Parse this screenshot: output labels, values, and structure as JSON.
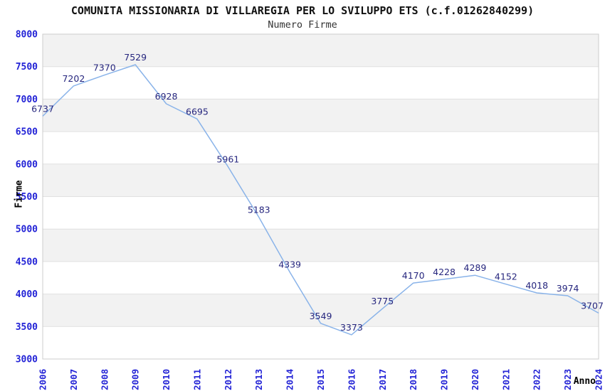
{
  "header": {
    "title": "COMUNITA MISSIONARIA DI VILLAREGIA PER LO SVILUPPO ETS (c.f.01262840299)",
    "subtitle": "Numero Firme"
  },
  "chart_data": {
    "type": "line",
    "title": "COMUNITA MISSIONARIA DI VILLAREGIA PER LO SVILUPPO ETS (c.f.01262840299)",
    "subtitle": "Numero Firme",
    "xlabel": "Anno",
    "ylabel": "Firme",
    "categories": [
      "2006",
      "2007",
      "2008",
      "2009",
      "2010",
      "2011",
      "2012",
      "2013",
      "2014",
      "2015",
      "2016",
      "2017",
      "2018",
      "2019",
      "2020",
      "2021",
      "2022",
      "2023",
      "2024"
    ],
    "values": [
      6737,
      7202,
      7370,
      7529,
      6928,
      6695,
      5961,
      5183,
      4339,
      3549,
      3373,
      3775,
      4170,
      4228,
      4289,
      4152,
      4018,
      3974,
      3707
    ],
    "ylim": [
      3000,
      8000
    ],
    "ytick_step": 500,
    "grid": true,
    "legend_position": "none",
    "band_fill_alternating": true,
    "colors": {
      "line": "#89b3e9",
      "point_label": "#26267e",
      "tick_label": "#2323d6",
      "axis_title": "#000000",
      "band_gray": "#f2f2f2",
      "band_white": "#ffffff",
      "gridline": "#e0e0e0",
      "plot_border": "#cccccc",
      "background": "#ffffff",
      "title_color": "#111111",
      "subtitle_color": "#333333"
    }
  }
}
